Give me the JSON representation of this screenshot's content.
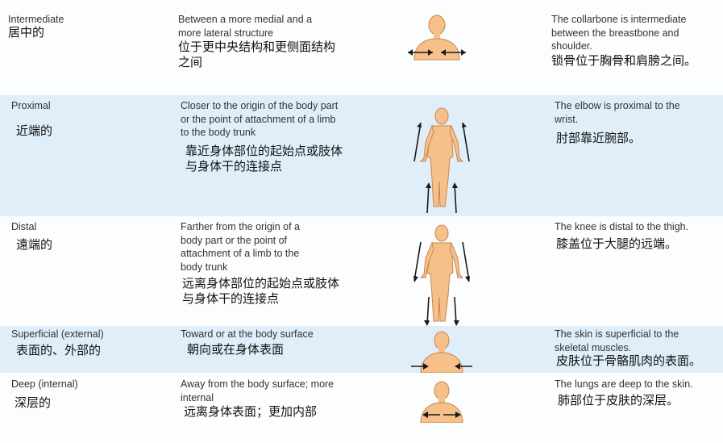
{
  "rows": [
    {
      "term_en": "Intermediate",
      "term_zh": "居中的",
      "def_en": "Between a more medial and a more lateral structure",
      "def_zh": "位于更中央结构和更侧面结构之间",
      "ex_en": "The collarbone is intermediate between the breastbone and shoulder.",
      "ex_zh": "锁骨位于胸骨和肩膀之间。",
      "icon": "torso-lateral-arrows-icon"
    },
    {
      "term_en": "Proximal",
      "term_zh": "近端的",
      "def_en": "Closer to the origin of the body part or the point of attachment of a limb to the body trunk",
      "def_zh": "靠近身体部位的起始点或肢体与身体干的连接点",
      "ex_en": "The elbow is proximal to the wrist.",
      "ex_zh": "肘部靠近腕部。",
      "icon": "figure-arrows-toward-trunk-icon"
    },
    {
      "term_en": "Distal",
      "term_zh": "遠端的",
      "def_en": "Farther from the origin of a body part or the point of attachment of a limb to the body trunk",
      "def_zh": "远离身体部位的起始点或肢体与身体干的连接点",
      "ex_en": "The knee is distal to the thigh.",
      "ex_zh": "膝盖位于大腿的远端。",
      "icon": "figure-arrows-away-from-trunk-icon"
    },
    {
      "term_en": "Superficial (external)",
      "term_zh": "表面的、外部的",
      "def_en": "Toward or at the body surface",
      "def_zh": "朝向或在身体表面",
      "ex_en": "The skin is superficial to the skeletal muscles.",
      "ex_zh": "皮肤位于骨骼肌肉的表面。",
      "icon": "torso-arrows-inward-icon"
    },
    {
      "term_en": "Deep (internal)",
      "term_zh": "深层的",
      "def_en": "Away from the body surface; more internal",
      "def_zh": "远离身体表面；更加内部",
      "ex_en": "The lungs are deep to the skin.",
      "ex_zh": "肺部位于皮肤的深层。",
      "icon": "torso-arrows-outward-icon"
    }
  ],
  "colors": {
    "band": "#dfeef8",
    "figure_fill": "#f6c08a",
    "figure_stroke": "#c7864a",
    "arrow": "#1a1a1a"
  }
}
